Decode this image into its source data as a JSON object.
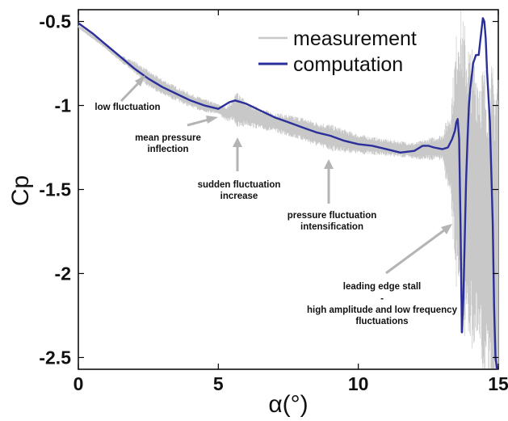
{
  "chart_data": {
    "type": "line",
    "xlabel": "α(°)",
    "ylabel": "Cp",
    "xlim": [
      0,
      15
    ],
    "ylim": [
      -2.57,
      -0.43
    ],
    "y_inverted": true,
    "grid": false,
    "legend_position": "top-right",
    "x_ticks": [
      "0",
      "5",
      "10",
      "15"
    ],
    "y_ticks": [
      "-0.5",
      "-1",
      "-1.5",
      "-2",
      "-2.5"
    ],
    "colors": {
      "measurement": "#c8c8c8",
      "computation": "#2b2f9a",
      "arrow": "#b4b4b4"
    },
    "series": [
      {
        "name": "measurement",
        "x": [
          0.0,
          0.5,
          1.0,
          1.5,
          2.0,
          2.5,
          3.0,
          3.5,
          4.0,
          4.5,
          5.0,
          5.3,
          5.6,
          6.0,
          6.5,
          7.0,
          7.5,
          8.0,
          8.5,
          9.0,
          9.5,
          10.0,
          10.5,
          11.0,
          11.5,
          12.0,
          12.5,
          13.0,
          13.3,
          13.6,
          13.9,
          14.2,
          14.5,
          14.8,
          15.0
        ],
        "y": [
          -0.53,
          -0.59,
          -0.65,
          -0.72,
          -0.77,
          -0.84,
          -0.89,
          -0.93,
          -0.97,
          -1.0,
          -1.02,
          -1.05,
          -1.02,
          -1.05,
          -1.08,
          -1.1,
          -1.12,
          -1.14,
          -1.17,
          -1.19,
          -1.21,
          -1.23,
          -1.24,
          -1.25,
          -1.26,
          -1.27,
          -1.26,
          -1.25,
          -1.3,
          -1.35,
          -1.5,
          -1.6,
          -1.7,
          -1.85,
          -1.9
        ],
        "fluctuation_band": {
          "x": [
            0.0,
            1.5,
            2.5,
            4.5,
            5.0,
            5.5,
            5.7,
            6.0,
            7.0,
            8.0,
            9.0,
            10.0,
            11.0,
            12.0,
            13.0,
            13.3,
            13.6,
            14.0,
            14.5,
            15.0
          ],
          "half_amplitude": [
            0.01,
            0.02,
            0.05,
            0.04,
            0.03,
            0.06,
            0.12,
            0.07,
            0.06,
            0.07,
            0.08,
            0.06,
            0.05,
            0.05,
            0.08,
            0.3,
            1.0,
            0.9,
            0.95,
            1.2
          ]
        }
      },
      {
        "name": "computation",
        "x": [
          0.0,
          0.5,
          1.0,
          1.5,
          2.0,
          2.5,
          3.0,
          3.5,
          4.0,
          4.5,
          5.0,
          5.2,
          5.4,
          5.6,
          5.8,
          6.0,
          6.5,
          7.0,
          7.5,
          8.0,
          8.5,
          9.0,
          9.5,
          10.0,
          10.5,
          11.0,
          11.5,
          12.0,
          12.3,
          12.5,
          12.7,
          13.0,
          13.2,
          13.35,
          13.45,
          13.5,
          13.55,
          13.6,
          13.65,
          13.7,
          13.75,
          13.8,
          13.85,
          13.9,
          13.95,
          14.0,
          14.1,
          14.2,
          14.3,
          14.4,
          14.45,
          14.5,
          14.55,
          14.6,
          14.7,
          14.8,
          14.85,
          14.9,
          14.95,
          15.0
        ],
        "y": [
          -0.51,
          -0.57,
          -0.64,
          -0.71,
          -0.78,
          -0.84,
          -0.89,
          -0.93,
          -0.97,
          -1.0,
          -1.02,
          -1.0,
          -0.98,
          -0.97,
          -0.98,
          -0.99,
          -1.03,
          -1.07,
          -1.1,
          -1.13,
          -1.16,
          -1.18,
          -1.21,
          -1.23,
          -1.24,
          -1.26,
          -1.28,
          -1.27,
          -1.24,
          -1.24,
          -1.25,
          -1.26,
          -1.25,
          -1.2,
          -1.15,
          -1.1,
          -1.08,
          -1.2,
          -1.7,
          -2.35,
          -2.15,
          -1.8,
          -1.45,
          -1.2,
          -1.0,
          -0.9,
          -0.75,
          -0.7,
          -0.7,
          -0.55,
          -0.48,
          -0.5,
          -0.6,
          -0.8,
          -1.1,
          -1.7,
          -2.2,
          -2.5,
          -2.58,
          -2.6
        ]
      }
    ],
    "annotations": [
      {
        "lines": [
          "low fluctuation"
        ]
      },
      {
        "lines": [
          "mean pressure",
          "inflection"
        ]
      },
      {
        "lines": [
          "sudden fluctuation",
          "increase"
        ]
      },
      {
        "lines": [
          "pressure fluctuation",
          "intensification"
        ]
      },
      {
        "lines": [
          "leading edge stall",
          "-",
          "high amplitude and low frequency",
          "fluctuations"
        ]
      }
    ]
  }
}
